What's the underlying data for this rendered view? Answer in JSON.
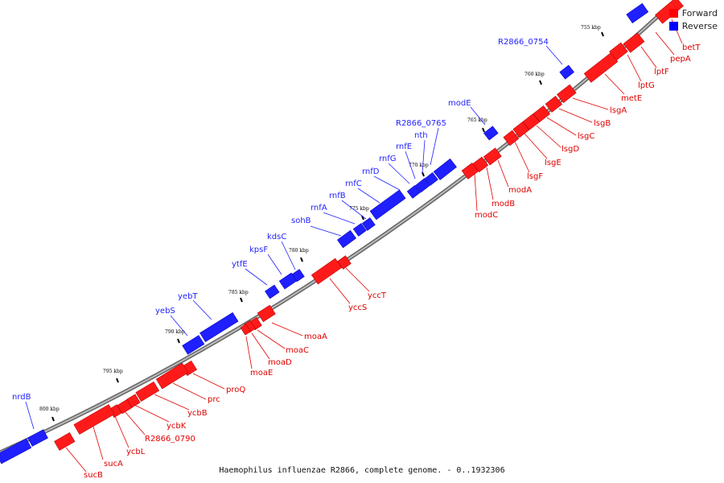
{
  "legend": {
    "forward_label": "Forward",
    "reverse_label": "Reverse",
    "forward_color": "#ff0000",
    "reverse_color": "#0000ff"
  },
  "caption": "Haemophilus influenzae R2866, complete genome. - 0..1932306",
  "colors": {
    "forward": "#ff1a1a",
    "reverse": "#1f1fff",
    "backbone": "#808080"
  },
  "scale_ticks": [
    "755 kbp",
    "760 kbp",
    "765 kbp",
    "770 kbp",
    "775 kbp",
    "780 kbp",
    "785 kbp",
    "790 kbp",
    "795 kbp",
    "800 kbp"
  ],
  "genes_forward": [
    "betT",
    "lptF",
    "pepA",
    "lptG",
    "metE",
    "lsgA",
    "lsgB",
    "lsgC",
    "lsgD",
    "lsgE",
    "lsgF",
    "modA",
    "modB",
    "modC",
    "yccT",
    "yccS",
    "moaA",
    "moaC",
    "moaD",
    "moaE",
    "proQ",
    "prc",
    "ycbB",
    "ycbK",
    "R2866_0790",
    "ycbL",
    "sucA",
    "sucB"
  ],
  "genes_reverse": [
    "R2866_0754",
    "modE",
    "R2866_0765",
    "nth",
    "rnfE",
    "rnfG",
    "rnfD",
    "rnfC",
    "rnfB",
    "rnfA",
    "sohB",
    "kdsC",
    "kpsF",
    "ytfE",
    "yebT",
    "yebS",
    "nrdB"
  ]
}
